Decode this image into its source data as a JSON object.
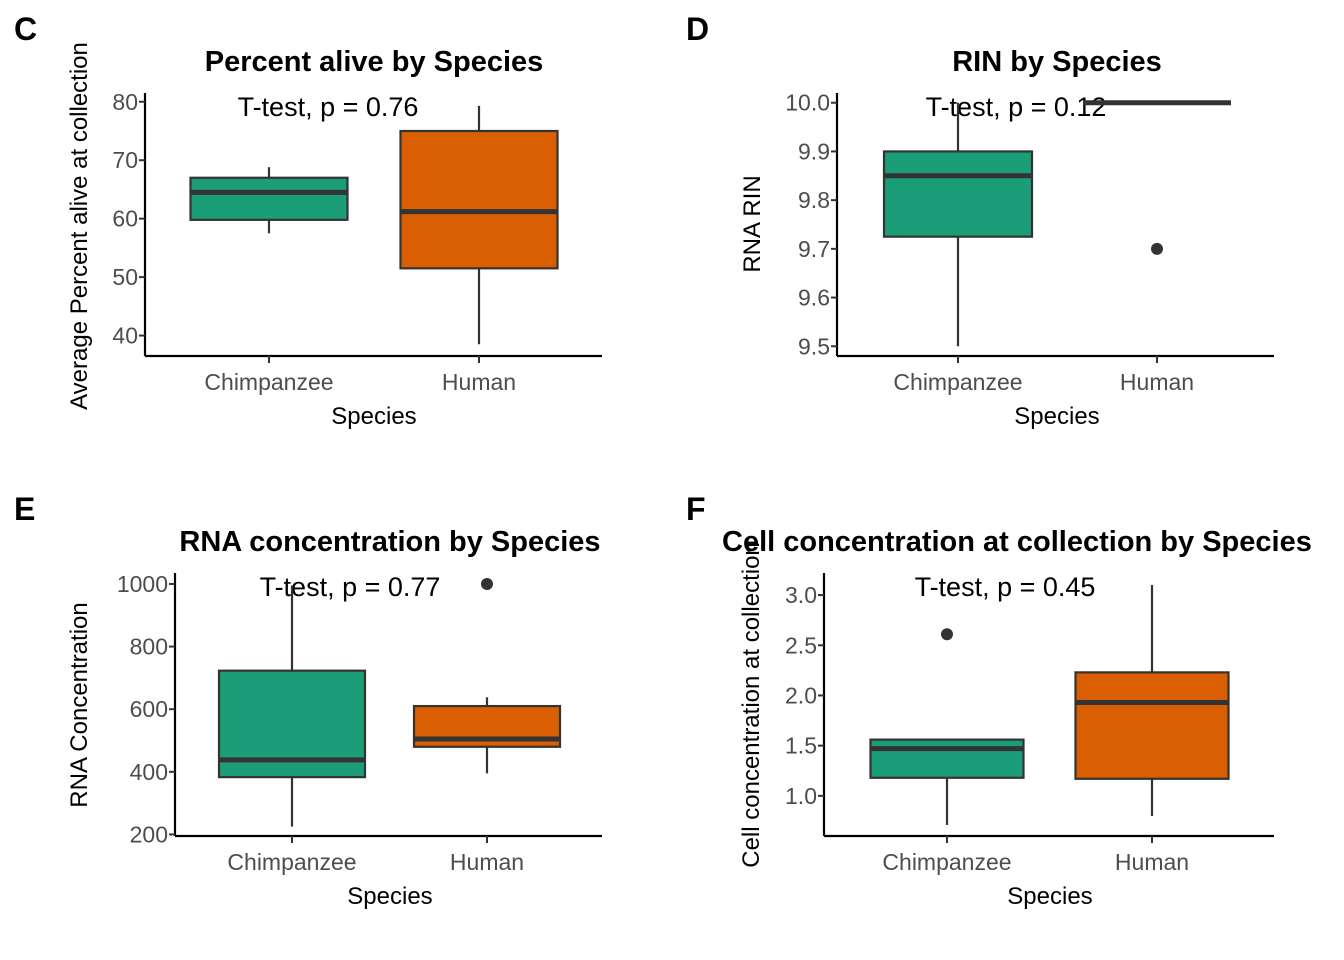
{
  "colors": {
    "chimpanzee": "#1b9e77",
    "human": "#d95f02",
    "line": "#333333"
  },
  "chart_data": [
    {
      "panel": "C",
      "type": "box",
      "title": "Percent alive by Species",
      "xlabel": "Species",
      "ylabel": "Average Percent alive at collection",
      "annotation": "T-test, p = 0.76",
      "ylim": [
        36.5,
        81.5
      ],
      "yticks": [
        40,
        50,
        60,
        70,
        80
      ],
      "ytick_labels": [
        "40",
        "50",
        "60",
        "70",
        "80"
      ],
      "categories": [
        "Chimpanzee",
        "Human"
      ],
      "boxes": [
        {
          "group": "Chimpanzee",
          "min": 57.5,
          "q1": 59.8,
          "median": 64.5,
          "q3": 67.0,
          "max": 68.8,
          "outliers": []
        },
        {
          "group": "Human",
          "min": 38.5,
          "q1": 51.5,
          "median": 61.2,
          "q3": 75.0,
          "max": 79.3,
          "outliers": []
        }
      ]
    },
    {
      "panel": "D",
      "type": "box",
      "title": "RIN by Species",
      "xlabel": "Species",
      "ylabel": "RNA RIN",
      "annotation": "T-test, p = 0.12",
      "ylim": [
        9.48,
        10.02
      ],
      "yticks": [
        9.5,
        9.6,
        9.7,
        9.8,
        9.9,
        10.0
      ],
      "ytick_labels": [
        "9.5",
        "9.6",
        "9.7",
        "9.8",
        "9.9",
        "10.0"
      ],
      "categories": [
        "Chimpanzee",
        "Human"
      ],
      "boxes": [
        {
          "group": "Chimpanzee",
          "min": 9.5,
          "q1": 9.725,
          "median": 9.85,
          "q3": 9.9,
          "max": 10.0,
          "outliers": []
        },
        {
          "group": "Human",
          "min": 10.0,
          "q1": 10.0,
          "median": 10.0,
          "q3": 10.0,
          "max": 10.0,
          "outliers": [
            9.7
          ]
        }
      ]
    },
    {
      "panel": "E",
      "type": "box",
      "title": "RNA concentration by Species",
      "xlabel": "Species",
      "ylabel": "RNA Concentration",
      "annotation": "T-test, p = 0.77",
      "ylim": [
        195,
        1035
      ],
      "yticks": [
        200,
        400,
        600,
        800,
        1000
      ],
      "ytick_labels": [
        "200",
        "400",
        "600",
        "800",
        "1000"
      ],
      "categories": [
        "Chimpanzee",
        "Human"
      ],
      "boxes": [
        {
          "group": "Chimpanzee",
          "min": 225,
          "q1": 383,
          "median": 438,
          "q3": 723,
          "max": 995,
          "outliers": []
        },
        {
          "group": "Human",
          "min": 395,
          "q1": 480,
          "median": 505,
          "q3": 610,
          "max": 638,
          "outliers": [
            1000
          ]
        }
      ]
    },
    {
      "panel": "F",
      "type": "box",
      "title": "Cell concentration at collection by Species",
      "xlabel": "Species",
      "ylabel": "Cell concentration at collection",
      "annotation": "T-test, p = 0.45",
      "ylim": [
        0.6,
        3.22
      ],
      "yticks": [
        1.0,
        1.5,
        2.0,
        2.5,
        3.0
      ],
      "ytick_labels": [
        "1.0",
        "1.5",
        "2.0",
        "2.5",
        "3.0"
      ],
      "categories": [
        "Chimpanzee",
        "Human"
      ],
      "boxes": [
        {
          "group": "Chimpanzee",
          "min": 0.71,
          "q1": 1.18,
          "median": 1.47,
          "q3": 1.56,
          "max": 1.57,
          "outliers": [
            2.61
          ]
        },
        {
          "group": "Human",
          "min": 0.8,
          "q1": 1.17,
          "median": 1.93,
          "q3": 2.23,
          "max": 3.1,
          "outliers": []
        }
      ]
    }
  ]
}
